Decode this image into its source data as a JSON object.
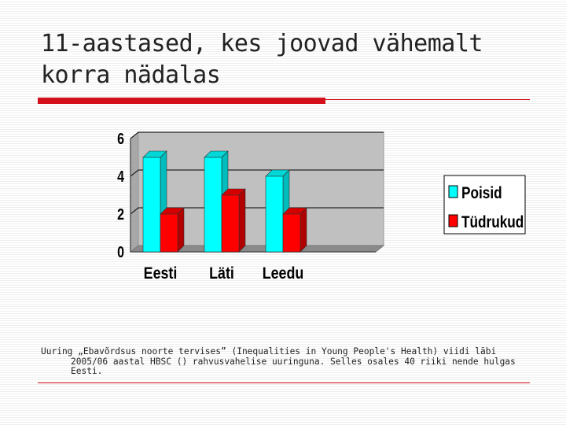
{
  "slide": {
    "title": "11-aastased, kes joovad vähemalt korra nädalas",
    "footnote": "Uuring „Ebavõrdsus noorte tervises” (Inequalities in Young People's Health) viidi läbi 2005/06 aastal HBSC () rahvusvahelise uuringuna. Selles osales 40 riiki nende hulgas Eesti."
  },
  "colors": {
    "accent": "#d4101c",
    "poisid": "#00ffff",
    "tudrukud": "#ff0000",
    "plot_bg": "#c0c0c0"
  },
  "chart_data": {
    "type": "bar",
    "categories": [
      "Eesti",
      "Läti",
      "Leedu"
    ],
    "series": [
      {
        "name": "Poisid",
        "values": [
          5,
          5,
          4
        ]
      },
      {
        "name": "Tüdrukud",
        "values": [
          2,
          3,
          2
        ]
      }
    ],
    "yticks": [
      "0",
      "2",
      "4",
      "6"
    ],
    "ylim": [
      0,
      6
    ],
    "grid": true,
    "legend": "right",
    "style": "3d"
  }
}
